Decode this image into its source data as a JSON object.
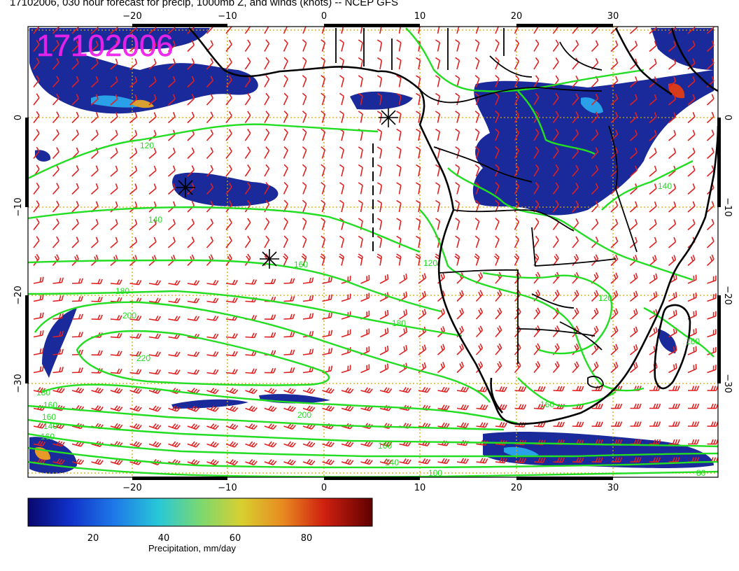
{
  "title": "17102006, 030 hour forecast for precip, 1000mb Z, and winds (knots) -- NCEP GFS",
  "stamp": "17102006",
  "axes": {
    "lon_ticks": [
      "−20",
      "−10",
      "0",
      "10",
      "20",
      "30"
    ],
    "lat_ticks_left": [
      "0",
      "−10",
      "−20",
      "−30"
    ],
    "lat_ticks_right": [
      "0",
      "−10",
      "−20",
      "−30"
    ]
  },
  "contour_labels": [
    {
      "text": "120"
    },
    {
      "text": "140"
    },
    {
      "text": "160"
    },
    {
      "text": "180"
    },
    {
      "text": "180"
    },
    {
      "text": "200"
    },
    {
      "text": "220"
    },
    {
      "text": "180"
    },
    {
      "text": "160"
    },
    {
      "text": "160"
    },
    {
      "text": "140"
    },
    {
      "text": "160"
    },
    {
      "text": "200"
    },
    {
      "text": "160"
    },
    {
      "text": "140"
    },
    {
      "text": "100"
    },
    {
      "text": "140"
    },
    {
      "text": "160"
    },
    {
      "text": "120"
    },
    {
      "text": "160"
    },
    {
      "text": "120"
    },
    {
      "text": "80"
    }
  ],
  "colorbar": {
    "tick_labels": [
      "20",
      "40",
      "60",
      "80"
    ],
    "label": "Precipitation, mm/day",
    "range": [
      0,
      100
    ],
    "colors": [
      "#1a1a8c",
      "#1f4fd6",
      "#2aa0e8",
      "#46d0c8",
      "#8ad86a",
      "#d8d830",
      "#e89a28",
      "#d83a1c",
      "#a01010",
      "#5a0808"
    ]
  },
  "colors": {
    "contour": "#22dd22",
    "barb": "#e02020",
    "grid": "#d4a800",
    "coast": "#000000",
    "stamp": "#ee22ee",
    "precip_low": "#1a2a9a"
  }
}
